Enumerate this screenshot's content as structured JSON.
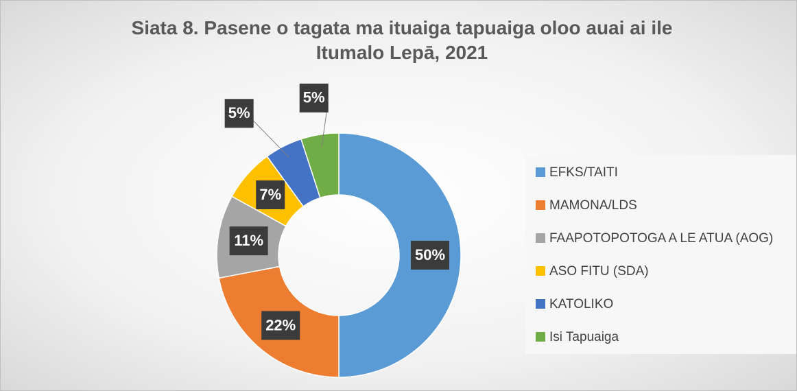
{
  "chart_data": {
    "type": "doughnut",
    "title": "Siata 8. Pasene o tagata ma ituaiga tapuaiga oloo auai ai ile Itumalo Lepā, 2021",
    "categories": [
      "EFKS/TAITI",
      "MAMONA/LDS",
      "FAAPOTOPOTOGA A LE ATUA (AOG)",
      "ASO FITU (SDA)",
      "KATOLIKO",
      "Isi Tapuaiga"
    ],
    "values": [
      50,
      22,
      11,
      7,
      5,
      5
    ],
    "value_labels": [
      "50%",
      "22%",
      "11%",
      "7%",
      "5%",
      "5%"
    ],
    "colors": [
      "#5b9bd5",
      "#ed7d31",
      "#a5a5a5",
      "#ffc000",
      "#4472c4",
      "#70ad47"
    ],
    "legend": "right"
  }
}
